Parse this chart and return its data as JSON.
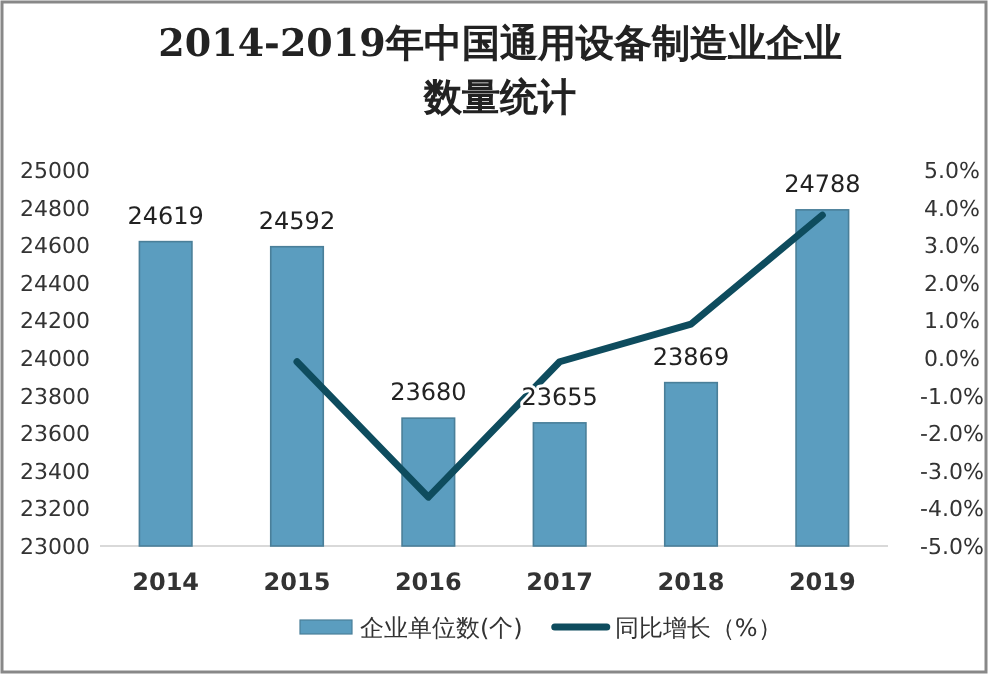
{
  "chart_data": {
    "type": "bar",
    "title": "2014-2019年中国通用设备制造业企业数量统计",
    "categories": [
      "2014",
      "2015",
      "2016",
      "2017",
      "2018",
      "2019"
    ],
    "series": [
      {
        "name": "企业单位数(个)",
        "color": "#5b9dbf",
        "values": [
          24619,
          24592,
          23680,
          23655,
          23869,
          24788
        ],
        "value_labels": [
          "24619",
          "24592",
          "23680",
          "23655",
          "23869",
          "24788"
        ]
      },
      {
        "name": "同比增长（%）",
        "type": "line",
        "axis": "y2",
        "color": "#0e4c5e",
        "values": [
          null,
          -0.1,
          -3.7,
          -0.1,
          0.9,
          3.8
        ]
      }
    ],
    "ylim": [
      23000,
      25000
    ],
    "yticks": [
      23000,
      23200,
      23400,
      23600,
      23800,
      24000,
      24200,
      24400,
      24600,
      24800,
      25000
    ],
    "y2lim": [
      -5,
      5
    ],
    "y2ticks": [
      {
        "value": -5,
        "label": "-5.0%"
      },
      {
        "value": -4,
        "label": "-4.0%"
      },
      {
        "value": -3,
        "label": "-3.0%"
      },
      {
        "value": -2,
        "label": "-2.0%"
      },
      {
        "value": -1,
        "label": "-1.0%"
      },
      {
        "value": 0,
        "label": "0.0%"
      },
      {
        "value": 1,
        "label": "1.0%"
      },
      {
        "value": 2,
        "label": "2.0%"
      },
      {
        "value": 3,
        "label": "3.0%"
      },
      {
        "value": 4,
        "label": "4.0%"
      },
      {
        "value": 5,
        "label": "5.0%"
      }
    ],
    "legend": "bottom"
  }
}
